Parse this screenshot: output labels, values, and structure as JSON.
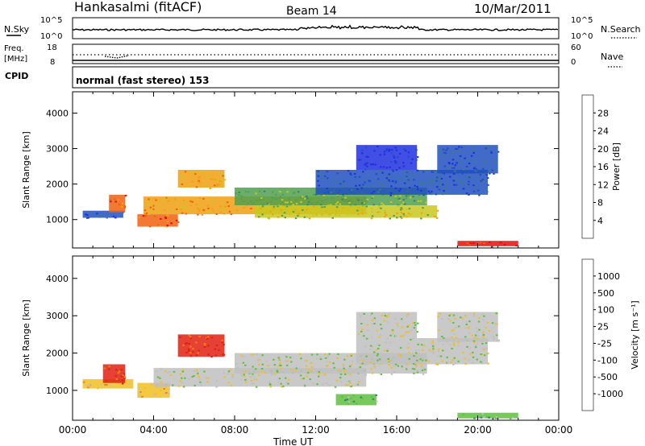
{
  "header": {
    "station": "Hankasalmi (fitACF)",
    "beam": "Beam 14",
    "date": "10/Mar/2011"
  },
  "top_strips": {
    "nsky_label": "N.Sky",
    "nsky_ticks": [
      "10^5",
      "10^0"
    ],
    "nsearch_label": "N.Search",
    "nsearch_ticks": [
      "10^5",
      "10^0"
    ],
    "freq_label": "Freq.",
    "freq_unit": "[MHz]",
    "freq_ticks": [
      "18",
      "8"
    ],
    "nave_label": "Nave",
    "nave_ticks": [
      "60",
      "0"
    ],
    "cpid_label": "CPID",
    "cpid_text": "normal (fast stereo) 153"
  },
  "chart_data": [
    {
      "type": "heatmap",
      "name": "power",
      "ylabel": "Slant Range [km]",
      "yticks": [
        "4000",
        "3000",
        "2000",
        "1000"
      ],
      "ylim": [
        200,
        4600
      ],
      "colorbar_label": "Power [dB]",
      "colorbar_ticks": [
        "28",
        "24",
        "20",
        "16",
        "12",
        "8",
        "4"
      ],
      "colors": [
        "#2030e0",
        "#2050c0",
        "#3a7f7a",
        "#50a050",
        "#c8c820",
        "#f0a010",
        "#f06010",
        "#e01010"
      ],
      "regions": [
        {
          "x": [
            0.5,
            2.5
          ],
          "y": [
            1050,
            1250
          ],
          "level": 1
        },
        {
          "x": [
            1.8,
            2.6
          ],
          "y": [
            1200,
            1700
          ],
          "level": 6
        },
        {
          "x": [
            3.2,
            5.2
          ],
          "y": [
            800,
            1150
          ],
          "level": 6
        },
        {
          "x": [
            3.5,
            14.5
          ],
          "y": [
            1150,
            1650
          ],
          "level": 5
        },
        {
          "x": [
            5.2,
            7.5
          ],
          "y": [
            1900,
            2400
          ],
          "level": 5
        },
        {
          "x": [
            8,
            17.5
          ],
          "y": [
            1400,
            1900
          ],
          "level": 3
        },
        {
          "x": [
            9,
            18
          ],
          "y": [
            1050,
            1400
          ],
          "level": 4
        },
        {
          "x": [
            12,
            20.5
          ],
          "y": [
            1700,
            2400
          ],
          "level": 1
        },
        {
          "x": [
            14,
            17
          ],
          "y": [
            2400,
            3100
          ],
          "level": 0
        },
        {
          "x": [
            18,
            21
          ],
          "y": [
            2300,
            3100
          ],
          "level": 1
        },
        {
          "x": [
            19,
            22
          ],
          "y": [
            250,
            400
          ],
          "level": 7
        }
      ]
    },
    {
      "type": "heatmap",
      "name": "velocity",
      "ylabel": "Slant Range [km]",
      "yticks": [
        "4000",
        "3000",
        "2000",
        "1000"
      ],
      "ylim": [
        200,
        4600
      ],
      "colorbar_label": "Velocity [m s⁻¹]",
      "colorbar_ticks": [
        "1000",
        "500",
        "100",
        "25",
        "-25",
        "-100",
        "-500",
        "-1000"
      ],
      "colors": [
        "#1830c0",
        "#2860d0",
        "#2a8a6a",
        "#60c040",
        "#c0c0c0",
        "#f0c020",
        "#f08010",
        "#e02010"
      ],
      "regions": [
        {
          "x": [
            0.5,
            3.0
          ],
          "y": [
            1050,
            1300
          ],
          "level": 5
        },
        {
          "x": [
            1.5,
            2.6
          ],
          "y": [
            1200,
            1700
          ],
          "level": 7
        },
        {
          "x": [
            3.2,
            4.8
          ],
          "y": [
            800,
            1200
          ],
          "level": 5
        },
        {
          "x": [
            4.0,
            14.5
          ],
          "y": [
            1100,
            1600
          ],
          "level": 4
        },
        {
          "x": [
            5.2,
            7.5
          ],
          "y": [
            1900,
            2500
          ],
          "level": 7
        },
        {
          "x": [
            8,
            17.5
          ],
          "y": [
            1450,
            2000
          ],
          "level": 4
        },
        {
          "x": [
            14,
            20.5
          ],
          "y": [
            1700,
            2400
          ],
          "level": 4
        },
        {
          "x": [
            14,
            17
          ],
          "y": [
            2400,
            3100
          ],
          "level": 4
        },
        {
          "x": [
            18,
            21
          ],
          "y": [
            2300,
            3100
          ],
          "level": 4
        },
        {
          "x": [
            13,
            15
          ],
          "y": [
            600,
            900
          ],
          "level": 3
        },
        {
          "x": [
            19,
            22
          ],
          "y": [
            250,
            400
          ],
          "level": 3
        }
      ]
    }
  ],
  "x_axis": {
    "ticks": [
      "00:00",
      "04:00",
      "08:00",
      "12:00",
      "16:00",
      "20:00",
      "00:00"
    ],
    "label": "Time UT",
    "range_hours": [
      0,
      24
    ]
  }
}
